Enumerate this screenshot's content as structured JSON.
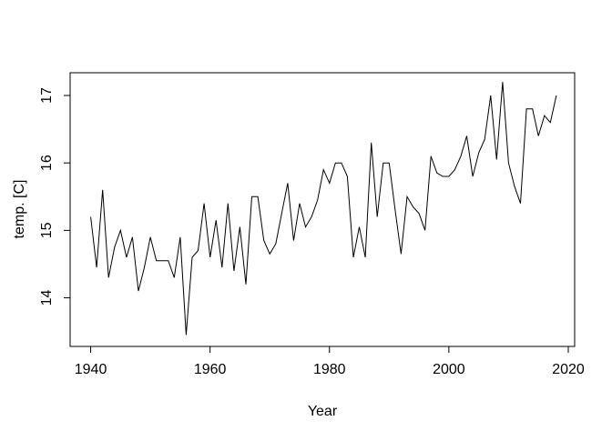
{
  "figure": {
    "background": "#ffffff",
    "xlabel": "Year",
    "ylabel": "temp. [C]"
  },
  "chart_data": {
    "type": "line",
    "title": "",
    "xlabel": "Year",
    "ylabel": "temp. [C]",
    "line_color": "#000000",
    "background": "#ffffff",
    "grid": false,
    "legend": null,
    "xlim": [
      1936.56,
      2021.07
    ],
    "ylim": [
      13.279,
      17.337
    ],
    "x_ticks": [
      1940,
      1960,
      1980,
      2000,
      2020
    ],
    "y_ticks": [
      14,
      15,
      16,
      17
    ],
    "x": [
      1940,
      1941,
      1942,
      1943,
      1944,
      1945,
      1946,
      1947,
      1948,
      1949,
      1950,
      1951,
      1952,
      1953,
      1954,
      1955,
      1956,
      1957,
      1958,
      1959,
      1960,
      1961,
      1962,
      1963,
      1964,
      1965,
      1966,
      1967,
      1968,
      1969,
      1970,
      1971,
      1972,
      1973,
      1974,
      1975,
      1976,
      1977,
      1978,
      1979,
      1980,
      1981,
      1982,
      1983,
      1984,
      1985,
      1986,
      1987,
      1988,
      1989,
      1990,
      1991,
      1992,
      1993,
      1994,
      1995,
      1996,
      1997,
      1998,
      1999,
      2000,
      2001,
      2002,
      2003,
      2004,
      2005,
      2006,
      2007,
      2008,
      2009,
      2010,
      2011,
      2012,
      2013,
      2014,
      2015,
      2016,
      2017,
      2018
    ],
    "values": [
      15.2,
      14.45,
      15.6,
      14.3,
      14.75,
      15.0,
      14.6,
      14.9,
      14.1,
      14.45,
      14.9,
      14.55,
      14.55,
      14.55,
      14.3,
      14.9,
      13.45,
      14.6,
      14.7,
      15.4,
      14.6,
      15.15,
      14.45,
      15.4,
      14.4,
      15.05,
      14.2,
      15.5,
      15.5,
      14.85,
      14.65,
      14.8,
      15.25,
      15.7,
      14.85,
      15.4,
      15.05,
      15.2,
      15.45,
      15.9,
      15.7,
      16.0,
      16.0,
      15.8,
      14.6,
      15.05,
      14.6,
      16.3,
      15.2,
      16.0,
      16.0,
      15.3,
      14.65,
      15.5,
      15.35,
      15.25,
      15.0,
      16.1,
      15.85,
      15.8,
      15.8,
      15.9,
      16.1,
      16.4,
      15.8,
      16.15,
      16.35,
      17.0,
      16.05,
      17.2,
      16.0,
      15.65,
      15.4,
      16.8,
      16.8,
      16.4,
      16.7,
      16.6,
      17.0
    ]
  }
}
